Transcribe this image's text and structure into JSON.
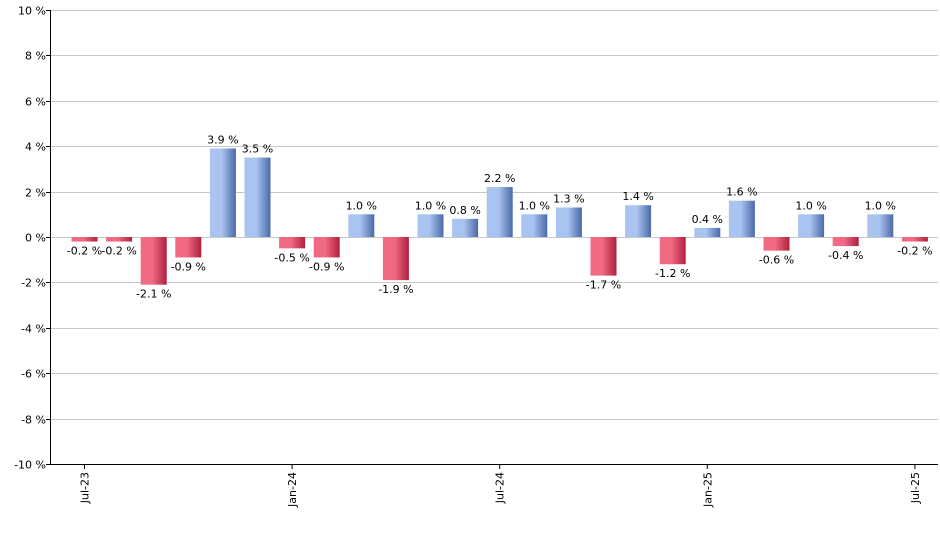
{
  "chart_data": {
    "type": "bar",
    "categories": [
      "Jul-23",
      "Aug-23",
      "Sep-23",
      "Oct-23",
      "Nov-23",
      "Dec-23",
      "Jan-24",
      "Feb-24",
      "Mar-24",
      "Apr-24",
      "May-24",
      "Jun-24",
      "Jul-24",
      "Aug-24",
      "Sep-24",
      "Oct-24",
      "Nov-24",
      "Dec-24",
      "Jan-25",
      "Feb-25",
      "Mar-25",
      "Apr-25",
      "May-25",
      "Jun-25",
      "Jul-25"
    ],
    "values": [
      -0.2,
      -0.2,
      -2.1,
      -0.9,
      3.9,
      3.5,
      -0.5,
      -0.9,
      1.0,
      -1.9,
      1.0,
      0.8,
      2.2,
      1.0,
      1.3,
      -1.7,
      1.4,
      -1.2,
      0.4,
      1.6,
      -0.6,
      1.0,
      -0.4,
      1.0,
      -0.2
    ],
    "data_labels": [
      "-0.2 %",
      "-0.2 %",
      "-2.1 %",
      "-0.9 %",
      "3.9 %",
      "3.5 %",
      "-0.5 %",
      "-0.9 %",
      "1.0 %",
      "-1.9 %",
      "1.0 %",
      "0.8 %",
      "2.2 %",
      "1.0 %",
      "1.3 %",
      "-1.7 %",
      "1.4 %",
      "-1.2 %",
      "0.4 %",
      "1.6 %",
      "-0.6 %",
      "1.0 %",
      "-0.4 %",
      "1.0 %",
      "-0.2 %"
    ],
    "x_tick_labels": [
      {
        "label": "Jul-23",
        "index": 0
      },
      {
        "label": "Jan-24",
        "index": 6
      },
      {
        "label": "Jul-24",
        "index": 12
      },
      {
        "label": "Jan-25",
        "index": 18
      },
      {
        "label": "Jul-25",
        "index": 24
      }
    ],
    "y_ticks": [
      10,
      8,
      6,
      4,
      2,
      0,
      -2,
      -4,
      -6,
      -8,
      -10
    ],
    "y_tick_labels": [
      "10 %",
      "8 %",
      "6 %",
      "4 %",
      "2 %",
      "0 %",
      "-2 %",
      "-4 %",
      "-6 %",
      "-8 %",
      "-10 %"
    ],
    "ylim": [
      -10,
      10
    ],
    "grid": true,
    "title": "",
    "xlabel": "",
    "ylabel": "",
    "colors": {
      "positive_light": "#a9c4f0",
      "positive_dark": "#4a6aa8",
      "negative_light": "#f06a84",
      "negative_dark": "#b01f3e"
    }
  }
}
